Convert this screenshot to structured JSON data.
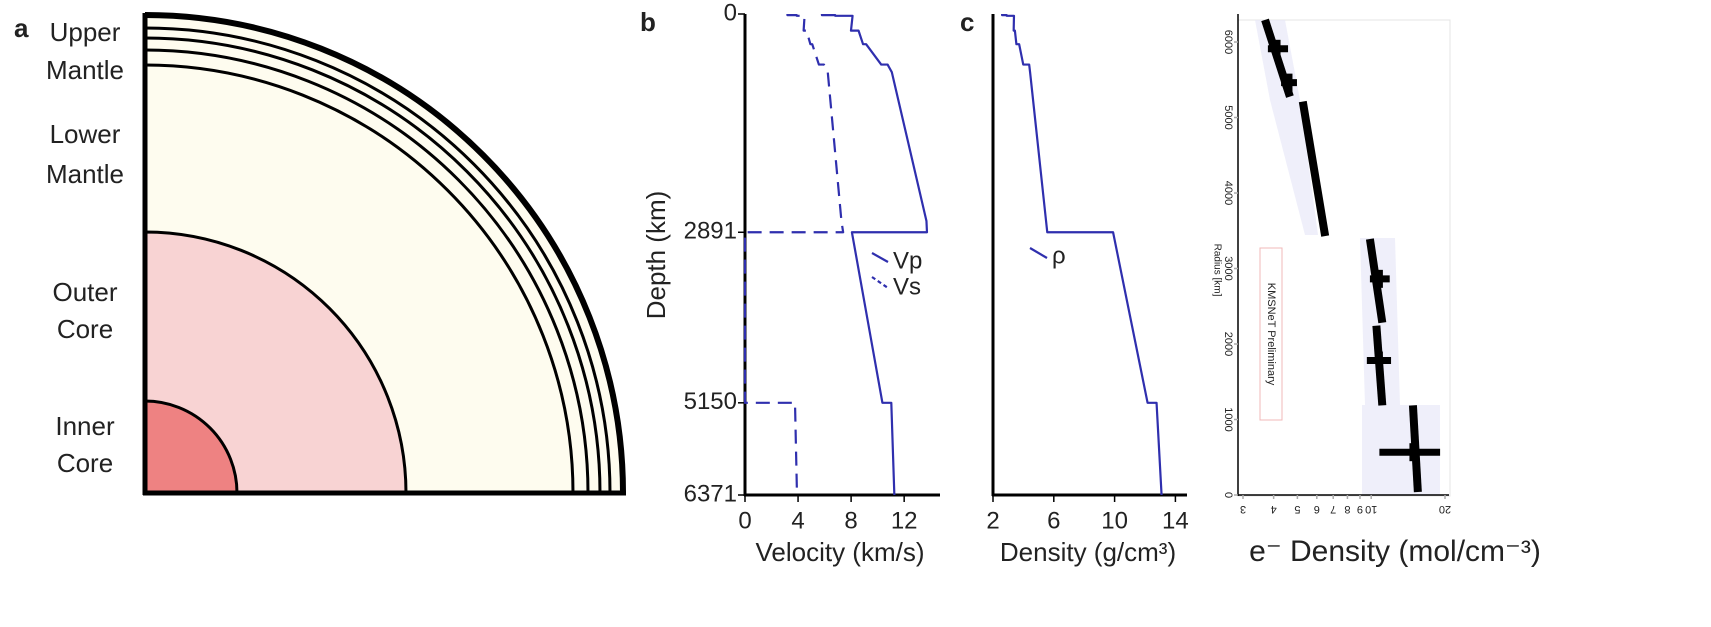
{
  "diagram_a": {
    "letter": "a",
    "labels": [
      [
        "Upper",
        "Mantle"
      ],
      [
        "Lower",
        "Mantle"
      ],
      [
        "Outer",
        "Core"
      ],
      [
        "Inner",
        "Core"
      ]
    ]
  },
  "chart_data": [
    {
      "type": "line",
      "panel": "b",
      "x_label": "Velocity (km/s)",
      "y_label": "Depth (km)",
      "y": [
        0,
        15,
        15,
        24,
        24,
        220,
        220,
        400,
        400,
        670,
        670,
        771,
        2741,
        2891,
        2891,
        5150,
        5150,
        6371
      ],
      "series": [
        {
          "name": "Vp",
          "color": "#2f2fae",
          "dashed": false,
          "values": [
            5.8,
            5.8,
            6.8,
            6.8,
            8.11,
            7.99,
            8.56,
            8.9,
            9.13,
            10.27,
            10.75,
            11.07,
            13.68,
            13.72,
            8.06,
            10.36,
            11.03,
            11.26
          ]
        },
        {
          "name": "Vs",
          "color": "#2f2fae",
          "dashed": true,
          "values": [
            3.2,
            3.2,
            3.9,
            3.9,
            4.49,
            4.42,
            4.64,
            4.93,
            5.07,
            5.57,
            5.95,
            6.24,
            7.27,
            7.4,
            0,
            0,
            3.77,
            3.92
          ]
        }
      ],
      "xlim": [
        0,
        14.4
      ],
      "xticks": [
        0,
        4,
        8,
        12
      ],
      "ylim": [
        0,
        6371
      ],
      "yticks": [
        0,
        2891,
        5150,
        6371
      ],
      "y_inverted": true
    },
    {
      "type": "line",
      "panel": "c",
      "x_label": "Density (g/cm³)",
      "y": [
        0,
        15,
        15,
        24,
        24,
        220,
        220,
        400,
        400,
        670,
        670,
        771,
        2741,
        2891,
        2891,
        5150,
        5150,
        6371
      ],
      "series": [
        {
          "name": "ρ",
          "color": "#2f2fae",
          "dashed": false,
          "values": [
            2.6,
            2.6,
            2.9,
            2.9,
            3.38,
            3.36,
            3.44,
            3.54,
            3.72,
            3.99,
            4.38,
            4.44,
            5.49,
            5.57,
            9.9,
            12.17,
            12.76,
            13.09
          ]
        }
      ],
      "xlim": [
        2,
        14.5
      ],
      "xticks": [
        2,
        6,
        10,
        14
      ],
      "ylim": [
        0,
        6371
      ],
      "y_inverted": true
    },
    {
      "type": "line",
      "x_label": "e⁻ Density (mol/cm⁻³)",
      "y_label": "Radius [km]",
      "annotation": "KMSNeT Preliminary",
      "xscale": "log",
      "xlim": [
        3,
        20
      ],
      "xticks": [
        3,
        4,
        5,
        6,
        7,
        8,
        9,
        10,
        20
      ],
      "ylim": [
        0,
        6371
      ],
      "yticks": [
        0,
        1000,
        2000,
        3000,
        4000,
        5000,
        6000
      ],
      "y_inverted": false,
      "series": [
        {
          "color": "#000000",
          "y": [
            6293,
            5277
          ],
          "values": [
            3.69,
            4.66
          ]
        },
        {
          "color": "#000000",
          "y": [
            5211,
            3430
          ],
          "values": [
            5.26,
            6.49
          ]
        },
        {
          "color": "#000000",
          "y": [
            3391,
            2282
          ],
          "values": [
            9.88,
            11.1
          ]
        },
        {
          "color": "#000000",
          "y": [
            2243,
            1187
          ],
          "values": [
            10.5,
            11.1
          ]
        },
        {
          "color": "#000000",
          "y": [
            1187,
            40
          ],
          "values": [
            14.8,
            15.5
          ]
        }
      ],
      "errorbars": [
        {
          "y": 5910,
          "value": 4.13,
          "value_low": 3.79,
          "value_high": 4.58
        },
        {
          "y": 5462,
          "value": 4.62,
          "value_low": 4.29,
          "value_high": 4.98
        },
        {
          "y": 2863,
          "value": 10.8,
          "value_low": 9.88,
          "value_high": 11.9
        },
        {
          "y": 1781,
          "value": 10.8,
          "value_low": 9.6,
          "value_high": 12.05
        },
        {
          "y": 567,
          "value": 14.8,
          "value_low": 10.8,
          "value_high": 19.1
        }
      ]
    }
  ]
}
